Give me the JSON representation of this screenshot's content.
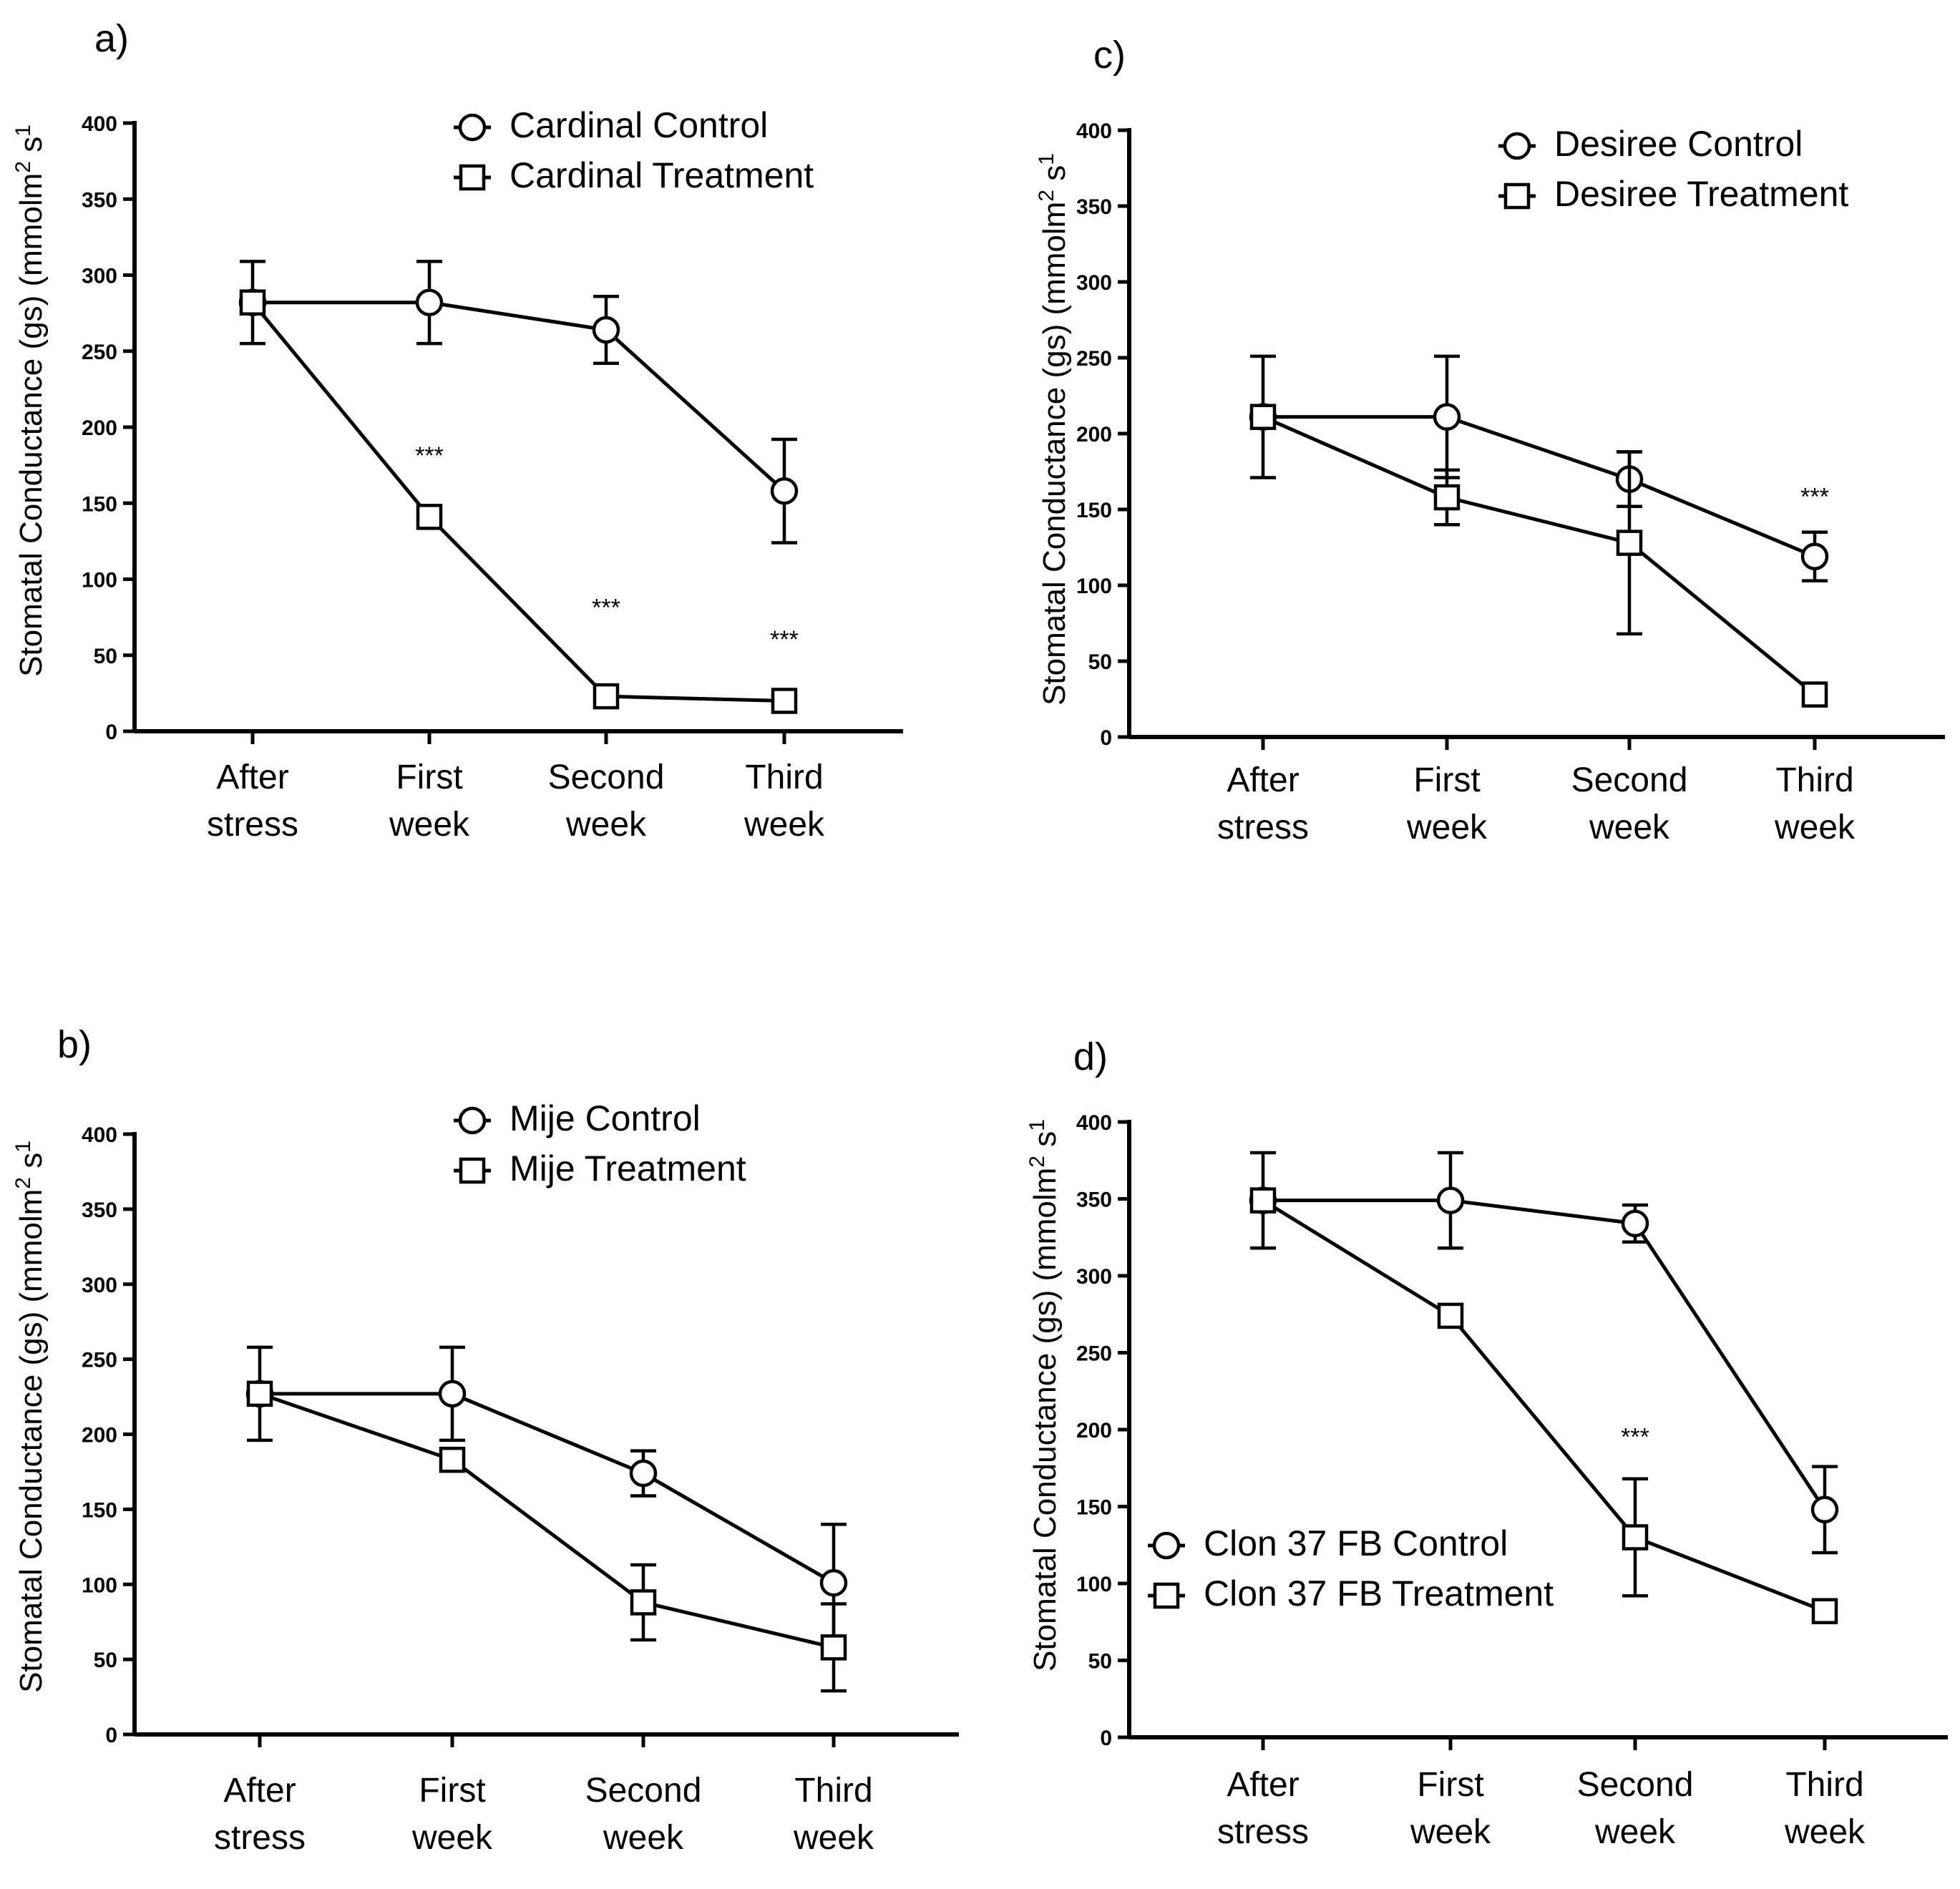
{
  "chart_data": [
    {
      "panel": "a)",
      "type": "line",
      "categories": [
        "After\nstress",
        "First\nweek",
        "Second\nweek",
        "Third\nweek"
      ],
      "ylabel": "Stomatal Conductance (gs) (mmolm2 s1",
      "ylim": [
        0,
        400
      ],
      "yticks": [
        0,
        50,
        100,
        150,
        200,
        250,
        300,
        350,
        400
      ],
      "legend_position": "top-right",
      "series": [
        {
          "name": "Cardinal Control",
          "marker": "circle",
          "values": [
            282,
            282,
            264,
            158
          ],
          "errors": [
            27,
            27,
            22,
            34
          ]
        },
        {
          "name": "Cardinal Treatment",
          "marker": "square",
          "values": [
            282,
            141,
            23,
            20
          ],
          "errors": [
            0,
            0,
            0,
            0
          ]
        }
      ],
      "annotations": [
        {
          "text": "***",
          "category": 1,
          "y": 176
        },
        {
          "text": "***",
          "category": 2,
          "y": 76
        },
        {
          "text": "***",
          "category": 3,
          "y": 55
        }
      ]
    },
    {
      "panel": "b)",
      "type": "line",
      "categories": [
        "After\nstress",
        "First\nweek",
        "Second\nweek",
        "Third\nweek"
      ],
      "ylabel": "Stomatal Conductance (gs) (mmolm2 s1",
      "ylim": [
        0,
        400
      ],
      "yticks": [
        0,
        50,
        100,
        150,
        200,
        250,
        300,
        350,
        400
      ],
      "legend_position": "top-right",
      "series": [
        {
          "name": "Mije Control",
          "marker": "circle",
          "values": [
            227,
            227,
            174,
            101
          ],
          "errors": [
            31,
            31,
            15,
            39
          ]
        },
        {
          "name": "Mije Treatment",
          "marker": "square",
          "values": [
            227,
            183,
            88,
            58
          ],
          "errors": [
            0,
            7,
            25,
            29
          ]
        }
      ],
      "annotations": []
    },
    {
      "panel": "c)",
      "type": "line",
      "categories": [
        "After\nstress",
        "First\nweek",
        "Second\nweek",
        "Third\nweek"
      ],
      "ylabel": "Stomatal Conductance (gs) (mmolm2 s1",
      "ylim": [
        0,
        400
      ],
      "yticks": [
        0,
        50,
        100,
        150,
        200,
        250,
        300,
        350,
        400
      ],
      "legend_position": "top-right",
      "series": [
        {
          "name": "Desiree Control",
          "marker": "circle",
          "values": [
            211,
            211,
            170,
            119
          ],
          "errors": [
            40,
            40,
            18,
            16
          ]
        },
        {
          "name": "Desiree Treatment",
          "marker": "square",
          "values": [
            211,
            158,
            128,
            28
          ],
          "errors": [
            0,
            18,
            60,
            0
          ]
        }
      ],
      "annotations": [
        {
          "text": "***",
          "category": 3,
          "y": 153
        }
      ]
    },
    {
      "panel": "d)",
      "type": "line",
      "categories": [
        "After\nstress",
        "First\nweek",
        "Second\nweek",
        "Third\nweek"
      ],
      "ylabel": "Stomatal Conductance (gs) (mmolm2 s1",
      "ylim": [
        0,
        400
      ],
      "yticks": [
        0,
        50,
        100,
        150,
        200,
        250,
        300,
        350,
        400
      ],
      "legend_position": "bottom-left",
      "series": [
        {
          "name": "Clon 37 FB Control",
          "marker": "circle",
          "values": [
            349,
            349,
            334,
            148
          ],
          "errors": [
            31,
            31,
            12,
            28
          ]
        },
        {
          "name": "Clon 37 FB Treatment",
          "marker": "square",
          "values": [
            349,
            274,
            130,
            82
          ],
          "errors": [
            0,
            0,
            38,
            0
          ]
        }
      ],
      "annotations": [
        {
          "text": "***",
          "category": 2,
          "y": 190
        }
      ]
    }
  ]
}
